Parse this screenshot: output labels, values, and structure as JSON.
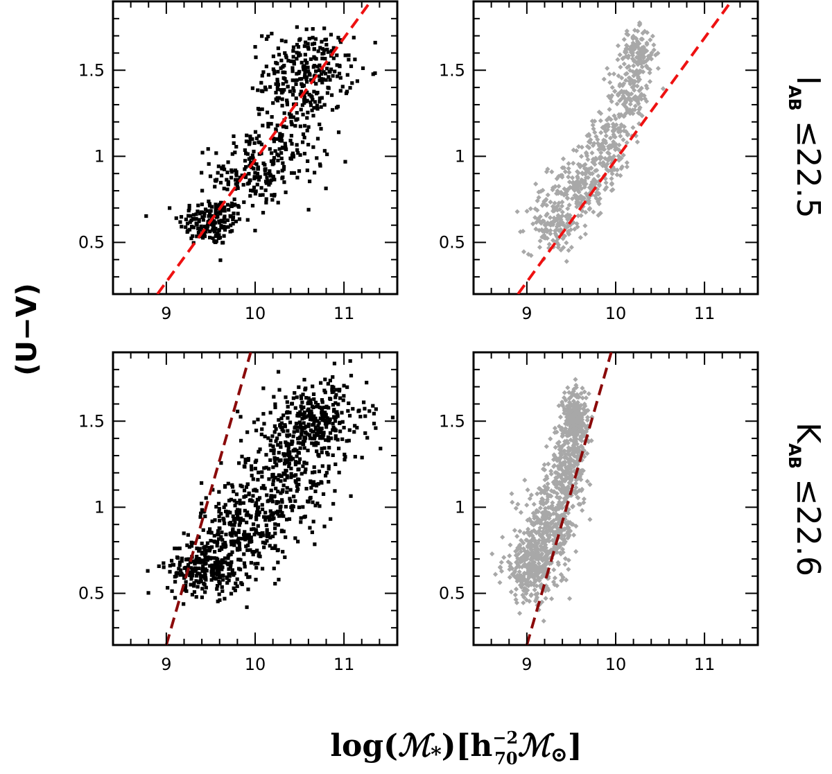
{
  "figure": {
    "ylabel": "(U−V)",
    "xlabel": "log(ℳ*)[h70−2ℳ⊙]",
    "xlabel_parts": {
      "prefix": "log(",
      "mass_symbol": "ℳ",
      "star": "*",
      "bracket_open": ")[h",
      "sup": "−2",
      "sub": "70",
      "mass_symbol2": "ℳ",
      "sun": "⊙",
      "bracket_close": "]"
    },
    "row_labels": [
      {
        "letter": "I",
        "subscript": "AB",
        "cut": "≤22.5"
      },
      {
        "letter": "K",
        "subscript": "AB",
        "cut": "≤22.6"
      }
    ]
  },
  "chart_data": [
    {
      "type": "scatter",
      "panel": "top-left",
      "sample": "I_AB ≤ 22.5",
      "point_color": "#000000",
      "marker": "square",
      "xlim": [
        8.4,
        11.6
      ],
      "ylim": [
        0.2,
        1.9
      ],
      "xticks": [
        9,
        10,
        11
      ],
      "xtick_labels": [
        "9",
        "10",
        "11"
      ],
      "yticks": [
        0.5,
        1,
        1.5
      ],
      "ytick_labels": [
        "0.5",
        "1",
        "1.5"
      ],
      "line": {
        "style": "dashed",
        "color": "#ee1111",
        "x": [
          8.9,
          11.3
        ],
        "y": [
          0.2,
          1.9
        ]
      },
      "cloud": [
        {
          "cx": 9.5,
          "cy": 0.62,
          "sx": 0.18,
          "sy": 0.07,
          "n": 170
        },
        {
          "cx": 9.95,
          "cy": 0.9,
          "sx": 0.22,
          "sy": 0.12,
          "n": 160
        },
        {
          "cx": 10.4,
          "cy": 1.15,
          "sx": 0.22,
          "sy": 0.16,
          "n": 150
        },
        {
          "cx": 10.6,
          "cy": 1.5,
          "sx": 0.25,
          "sy": 0.12,
          "n": 230
        }
      ]
    },
    {
      "type": "scatter",
      "panel": "top-right",
      "sample": "I_AB ≤ 22.5",
      "point_color": "#a8a8a8",
      "marker": "diamond",
      "xlim": [
        8.4,
        11.6
      ],
      "ylim": [
        0.2,
        1.9
      ],
      "xticks": [
        9,
        10,
        11
      ],
      "xtick_labels": [
        "9",
        "10",
        "11"
      ],
      "yticks": [
        0.5,
        1,
        1.5
      ],
      "ytick_labels": [
        "0.5",
        "1",
        "1.5"
      ],
      "line": {
        "style": "dashed",
        "color": "#ee1111",
        "x": [
          8.9,
          11.3
        ],
        "y": [
          0.2,
          1.9
        ]
      },
      "cloud": [
        {
          "cx": 9.3,
          "cy": 0.6,
          "sx": 0.16,
          "sy": 0.08,
          "n": 150
        },
        {
          "cx": 9.6,
          "cy": 0.82,
          "sx": 0.16,
          "sy": 0.08,
          "n": 170
        },
        {
          "cx": 9.9,
          "cy": 1.05,
          "sx": 0.14,
          "sy": 0.1,
          "n": 150
        },
        {
          "cx": 10.15,
          "cy": 1.35,
          "sx": 0.12,
          "sy": 0.1,
          "n": 140
        },
        {
          "cx": 10.25,
          "cy": 1.6,
          "sx": 0.1,
          "sy": 0.07,
          "n": 130
        }
      ]
    },
    {
      "type": "scatter",
      "panel": "bottom-left",
      "sample": "K_AB ≤ 22.6",
      "point_color": "#000000",
      "marker": "square",
      "xlim": [
        8.4,
        11.6
      ],
      "ylim": [
        0.2,
        1.9
      ],
      "xticks": [
        9,
        10,
        11
      ],
      "xtick_labels": [
        "9",
        "10",
        "11"
      ],
      "yticks": [
        0.5,
        1,
        1.5
      ],
      "ytick_labels": [
        "0.5",
        "1",
        "1.5"
      ],
      "line": {
        "style": "dashed",
        "color": "#8b0a0a",
        "x": [
          9.0,
          9.95
        ],
        "y": [
          0.2,
          1.9
        ]
      },
      "cloud": [
        {
          "cx": 9.45,
          "cy": 0.65,
          "sx": 0.22,
          "sy": 0.08,
          "n": 280
        },
        {
          "cx": 9.9,
          "cy": 0.9,
          "sx": 0.25,
          "sy": 0.13,
          "n": 260
        },
        {
          "cx": 10.35,
          "cy": 1.2,
          "sx": 0.28,
          "sy": 0.16,
          "n": 250
        },
        {
          "cx": 10.7,
          "cy": 1.5,
          "sx": 0.28,
          "sy": 0.12,
          "n": 310
        }
      ]
    },
    {
      "type": "scatter",
      "panel": "bottom-right",
      "sample": "K_AB ≤ 22.6",
      "point_color": "#a8a8a8",
      "marker": "diamond",
      "xlim": [
        8.4,
        11.6
      ],
      "ylim": [
        0.2,
        1.9
      ],
      "xticks": [
        9,
        10,
        11
      ],
      "xtick_labels": [
        "9",
        "10",
        "11"
      ],
      "yticks": [
        0.5,
        1,
        1.5
      ],
      "ytick_labels": [
        "0.5",
        "1",
        "1.5"
      ],
      "line": {
        "style": "dashed",
        "color": "#8b0a0a",
        "x": [
          9.0,
          9.95
        ],
        "y": [
          0.2,
          1.9
        ]
      },
      "cloud": [
        {
          "cx": 9.05,
          "cy": 0.65,
          "sx": 0.16,
          "sy": 0.1,
          "n": 300
        },
        {
          "cx": 9.25,
          "cy": 0.88,
          "sx": 0.14,
          "sy": 0.12,
          "n": 280
        },
        {
          "cx": 9.45,
          "cy": 1.2,
          "sx": 0.1,
          "sy": 0.13,
          "n": 260
        },
        {
          "cx": 9.55,
          "cy": 1.5,
          "sx": 0.07,
          "sy": 0.1,
          "n": 260
        }
      ]
    }
  ]
}
